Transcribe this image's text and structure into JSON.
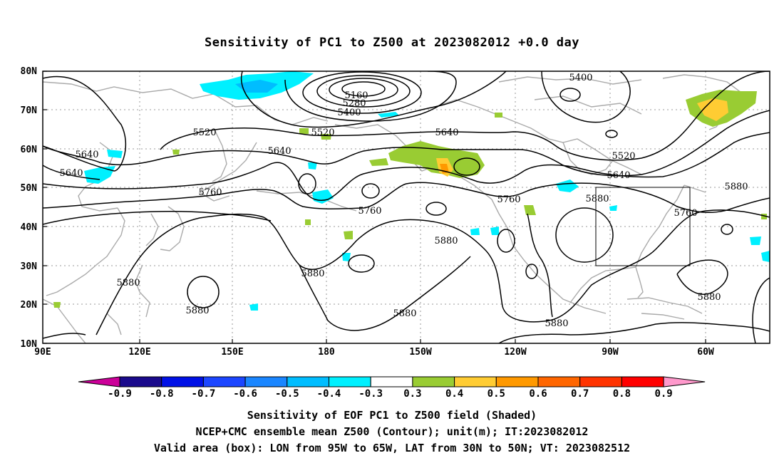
{
  "title": "Sensitivity of PC1 to Z500 at 2023082012 +0.0 day",
  "lat_labels": [
    "80N",
    "70N",
    "60N",
    "50N",
    "40N",
    "30N",
    "20N",
    "10N"
  ],
  "lon_labels": [
    "90E",
    "120E",
    "150E",
    "180",
    "150W",
    "120W",
    "90W",
    "60W"
  ],
  "contour_labels": [
    {
      "text": "5160"
    },
    {
      "text": "5280"
    },
    {
      "text": "5400"
    },
    {
      "text": "5400"
    },
    {
      "text": "5520"
    },
    {
      "text": "5520"
    },
    {
      "text": "5520"
    },
    {
      "text": "5640"
    },
    {
      "text": "5640"
    },
    {
      "text": "5640"
    },
    {
      "text": "5640"
    },
    {
      "text": "5640"
    },
    {
      "text": "5760"
    },
    {
      "text": "5760"
    },
    {
      "text": "5760"
    },
    {
      "text": "5760"
    },
    {
      "text": "5880"
    },
    {
      "text": "5880"
    },
    {
      "text": "5880"
    },
    {
      "text": "5880"
    },
    {
      "text": "5880"
    },
    {
      "text": "5880"
    },
    {
      "text": "5880"
    },
    {
      "text": "5880"
    },
    {
      "text": "5880"
    }
  ],
  "colorbar": {
    "labels": [
      "-0.9",
      "-0.8",
      "-0.7",
      "-0.6",
      "-0.5",
      "-0.4",
      "-0.3",
      "0.3",
      "0.4",
      "0.5",
      "0.6",
      "0.7",
      "0.8",
      "0.9"
    ],
    "colors": [
      "#1a0a8c",
      "#0010e6",
      "#1c46ff",
      "#1a86ff",
      "#00bdff",
      "#00f0ff",
      "#ffffff",
      "#99cc33",
      "#ffcc33",
      "#ff9900",
      "#ff6600",
      "#ff3300",
      "#ff0000"
    ],
    "low_extend_color": "#cc0099",
    "high_extend_color": "#ff99cc"
  },
  "valid_box": {
    "lon_west": -95,
    "lon_east": -65,
    "lat_south": 30,
    "lat_north": 50
  },
  "captions": {
    "line1": "Sensitivity of EOF PC1 to Z500 field (Shaded)",
    "line2": "NCEP+CMC ensemble mean Z500 (Contour); unit(m); IT:2023082012",
    "line3": "Valid area (box): LON from 95W to 65W, LAT from 30N to 50N; VT: 2023082512"
  }
}
